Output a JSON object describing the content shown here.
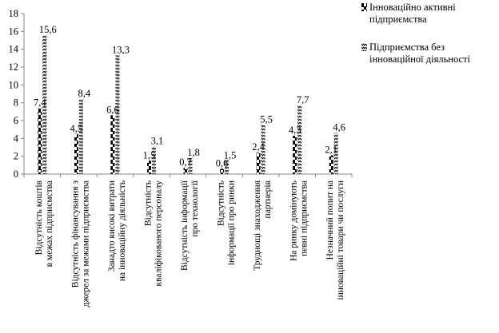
{
  "chart_data": {
    "type": "bar",
    "title": "",
    "xlabel": "",
    "ylabel": "",
    "ylim": [
      0,
      18
    ],
    "yticks": [
      "0",
      "2",
      "4",
      "6",
      "8",
      "10",
      "12",
      "14",
      "16",
      "18"
    ],
    "grid": false,
    "legend_position": "top-right",
    "categories": [
      "Відсутність коштів в межах підприємства",
      "Відсутність фінансування з джерел за межами підприємства",
      "Занадто високі витрати на інноваційну діяльність",
      "Відсутність кваліфікованого персоналу",
      "Відсутність інформації про технології",
      "Відсутність інформації про ринки",
      "Труднощі знаходження партнерів",
      "На ринку домінують певні підприємства",
      "Незначний попит на інноваційні товари чи послуги"
    ],
    "series": [
      {
        "name": "Інноваційно активні підприємства",
        "values": [
          7.4,
          4.5,
          6.6,
          1.5,
          0.7,
          0.6,
          2.4,
          4.3,
          2.1
        ],
        "labels": [
          "7,4",
          "4,5",
          "6,6",
          "1,5",
          "0,7",
          "0,6",
          "2,4",
          "4,3",
          "2,1"
        ],
        "pattern": "black-dashes"
      },
      {
        "name": "Підприємства без інноваційної діяльності",
        "values": [
          15.6,
          8.4,
          13.3,
          3.1,
          1.8,
          1.5,
          5.5,
          7.7,
          4.6
        ],
        "labels": [
          "15,6",
          "8,4",
          "13,3",
          "3,1",
          "1,8",
          "1,5",
          "5,5",
          "7,7",
          "4,6"
        ],
        "pattern": "zigzag"
      }
    ],
    "colors": {
      "axis": "#868686",
      "ink": "#000000"
    }
  },
  "legend": {
    "items": [
      {
        "text": "Інноваційно активні підприємства"
      },
      {
        "text": "Підприємства без інноваційної діяльності"
      }
    ]
  }
}
